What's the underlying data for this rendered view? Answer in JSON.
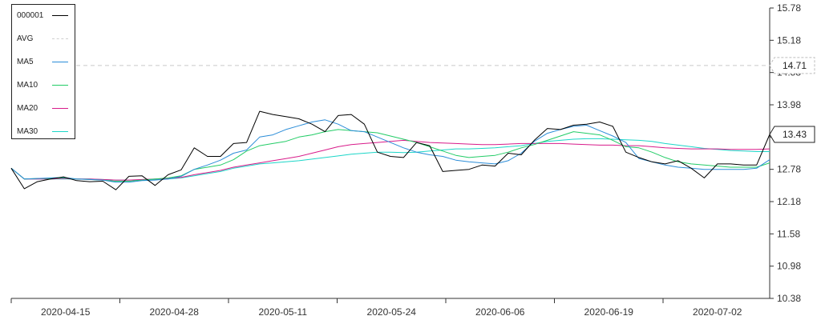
{
  "chart_data": {
    "type": "line",
    "x": [
      "2020-04-10",
      "2020-04-11",
      "2020-04-13",
      "2020-04-14",
      "2020-04-15",
      "2020-04-16",
      "2020-04-17",
      "2020-04-20",
      "2020-04-21",
      "2020-04-22",
      "2020-04-23",
      "2020-04-24",
      "2020-04-27",
      "2020-04-28",
      "2020-04-29",
      "2020-04-30",
      "2020-05-05",
      "2020-05-06",
      "2020-05-07",
      "2020-05-08",
      "2020-05-11",
      "2020-05-12",
      "2020-05-13",
      "2020-05-14",
      "2020-05-15",
      "2020-05-18",
      "2020-05-19",
      "2020-05-20",
      "2020-05-21",
      "2020-05-22",
      "2020-05-25",
      "2020-05-26",
      "2020-05-27",
      "2020-05-28",
      "2020-05-29",
      "2020-06-01",
      "2020-06-02",
      "2020-06-03",
      "2020-06-04",
      "2020-06-05",
      "2020-06-08",
      "2020-06-09",
      "2020-06-10",
      "2020-06-11",
      "2020-06-12",
      "2020-06-15",
      "2020-06-16",
      "2020-06-17",
      "2020-06-18",
      "2020-06-19",
      "2020-06-22",
      "2020-06-23",
      "2020-06-24",
      "2020-06-29",
      "2020-06-30",
      "2020-07-01",
      "2020-07-02",
      "2020-07-03",
      "2020-07-06"
    ],
    "series": [
      {
        "name": "000001",
        "color": "#000000",
        "values": [
          12.8,
          12.42,
          12.55,
          12.6,
          12.64,
          12.57,
          12.55,
          12.56,
          12.4,
          12.65,
          12.66,
          12.48,
          12.68,
          12.77,
          13.18,
          13.02,
          13.02,
          13.26,
          13.28,
          13.86,
          13.8,
          13.76,
          13.72,
          13.62,
          13.48,
          13.78,
          13.8,
          13.62,
          13.1,
          13.02,
          13.0,
          13.28,
          13.22,
          12.74,
          12.76,
          12.78,
          12.86,
          12.84,
          13.08,
          13.05,
          13.32,
          13.54,
          13.52,
          13.6,
          13.62,
          13.66,
          13.58,
          13.1,
          13.0,
          12.92,
          12.88,
          12.94,
          12.8,
          12.62,
          12.88,
          12.88,
          12.86,
          12.86,
          13.43
        ]
      },
      {
        "name": "MA5",
        "color": "#2b8dd8",
        "values": [
          12.8,
          12.6,
          12.61,
          12.62,
          12.63,
          12.6,
          12.59,
          12.58,
          12.54,
          12.54,
          12.57,
          12.58,
          12.6,
          12.65,
          12.78,
          12.86,
          12.95,
          13.08,
          13.14,
          13.38,
          13.42,
          13.52,
          13.59,
          13.66,
          13.7,
          13.62,
          13.5,
          13.48,
          13.38,
          13.28,
          13.18,
          13.1,
          13.05,
          13.02,
          12.95,
          12.92,
          12.9,
          12.88,
          12.94,
          13.08,
          13.3,
          13.45,
          13.52,
          13.58,
          13.6,
          13.5,
          13.4,
          13.28,
          12.98,
          12.92,
          12.86,
          12.82,
          12.8,
          12.78,
          12.78,
          12.78,
          12.78,
          12.8,
          12.96
        ]
      },
      {
        "name": "MA10",
        "color": "#22cc66",
        "values": [
          12.8,
          12.6,
          12.61,
          12.61,
          12.62,
          12.6,
          12.59,
          12.58,
          12.56,
          12.56,
          12.58,
          12.6,
          12.62,
          12.66,
          12.78,
          12.82,
          12.86,
          12.96,
          13.12,
          13.22,
          13.26,
          13.3,
          13.38,
          13.42,
          13.48,
          13.52,
          13.5,
          13.48,
          13.46,
          13.4,
          13.34,
          13.28,
          13.2,
          13.12,
          13.04,
          13.0,
          13.02,
          13.04,
          13.1,
          13.18,
          13.24,
          13.32,
          13.4,
          13.48,
          13.45,
          13.42,
          13.32,
          13.2,
          13.18,
          13.1,
          13.0,
          12.92,
          12.88,
          12.86,
          12.84,
          12.82,
          12.82,
          12.82,
          12.9
        ]
      },
      {
        "name": "MA20",
        "color": "#d81b8a",
        "values": [
          12.8,
          12.6,
          12.6,
          12.6,
          12.61,
          12.6,
          12.6,
          12.59,
          12.58,
          12.58,
          12.59,
          12.6,
          12.61,
          12.63,
          12.68,
          12.72,
          12.76,
          12.82,
          12.86,
          12.9,
          12.94,
          12.98,
          13.02,
          13.08,
          13.14,
          13.2,
          13.24,
          13.26,
          13.28,
          13.3,
          13.32,
          13.3,
          13.28,
          13.27,
          13.26,
          13.25,
          13.24,
          13.24,
          13.25,
          13.26,
          13.26,
          13.26,
          13.26,
          13.25,
          13.24,
          13.23,
          13.23,
          13.22,
          13.22,
          13.2,
          13.18,
          13.17,
          13.16,
          13.16,
          13.16,
          13.15,
          13.15,
          13.15,
          13.16
        ]
      },
      {
        "name": "MA30",
        "color": "#1cd6c8",
        "values": [
          12.8,
          12.6,
          12.6,
          12.6,
          12.6,
          12.6,
          12.6,
          12.59,
          12.58,
          12.58,
          12.58,
          12.59,
          12.6,
          12.62,
          12.66,
          12.7,
          12.74,
          12.8,
          12.84,
          12.88,
          12.9,
          12.92,
          12.94,
          12.97,
          13.0,
          13.03,
          13.06,
          13.08,
          13.1,
          13.1,
          13.09,
          13.1,
          13.12,
          13.14,
          13.16,
          13.16,
          13.17,
          13.18,
          13.2,
          13.22,
          13.26,
          13.3,
          13.32,
          13.34,
          13.35,
          13.35,
          13.34,
          13.33,
          13.32,
          13.3,
          13.26,
          13.23,
          13.2,
          13.17,
          13.15,
          13.13,
          13.12,
          13.11,
          13.11
        ]
      }
    ],
    "avg": {
      "name": "AVG",
      "value": 14.71,
      "color": "#d9d9d9"
    },
    "last_value": 13.43,
    "ylim": [
      10.38,
      15.78
    ],
    "y_ticks": [
      "15.78",
      "15.18",
      "14.58",
      "13.98",
      "13.38",
      "12.78",
      "12.18",
      "11.58",
      "10.98",
      "10.38"
    ],
    "x_tick_labels": [
      "2020-04-15",
      "2020-04-28",
      "2020-05-11",
      "2020-05-24",
      "2020-06-06",
      "2020-06-19",
      "2020-07-02"
    ],
    "legend": {
      "placement": "top-left",
      "entries": [
        {
          "label": "000001",
          "color": "#000000",
          "dashed": false
        },
        {
          "label": "AVG",
          "color": "#d9d9d9",
          "dashed": true
        },
        {
          "label": "MA5",
          "color": "#2b8dd8",
          "dashed": false
        },
        {
          "label": "MA10",
          "color": "#22cc66",
          "dashed": false
        },
        {
          "label": "MA20",
          "color": "#d81b8a",
          "dashed": false
        },
        {
          "label": "MA30",
          "color": "#1cd6c8",
          "dashed": false
        }
      ]
    },
    "grid": false
  }
}
